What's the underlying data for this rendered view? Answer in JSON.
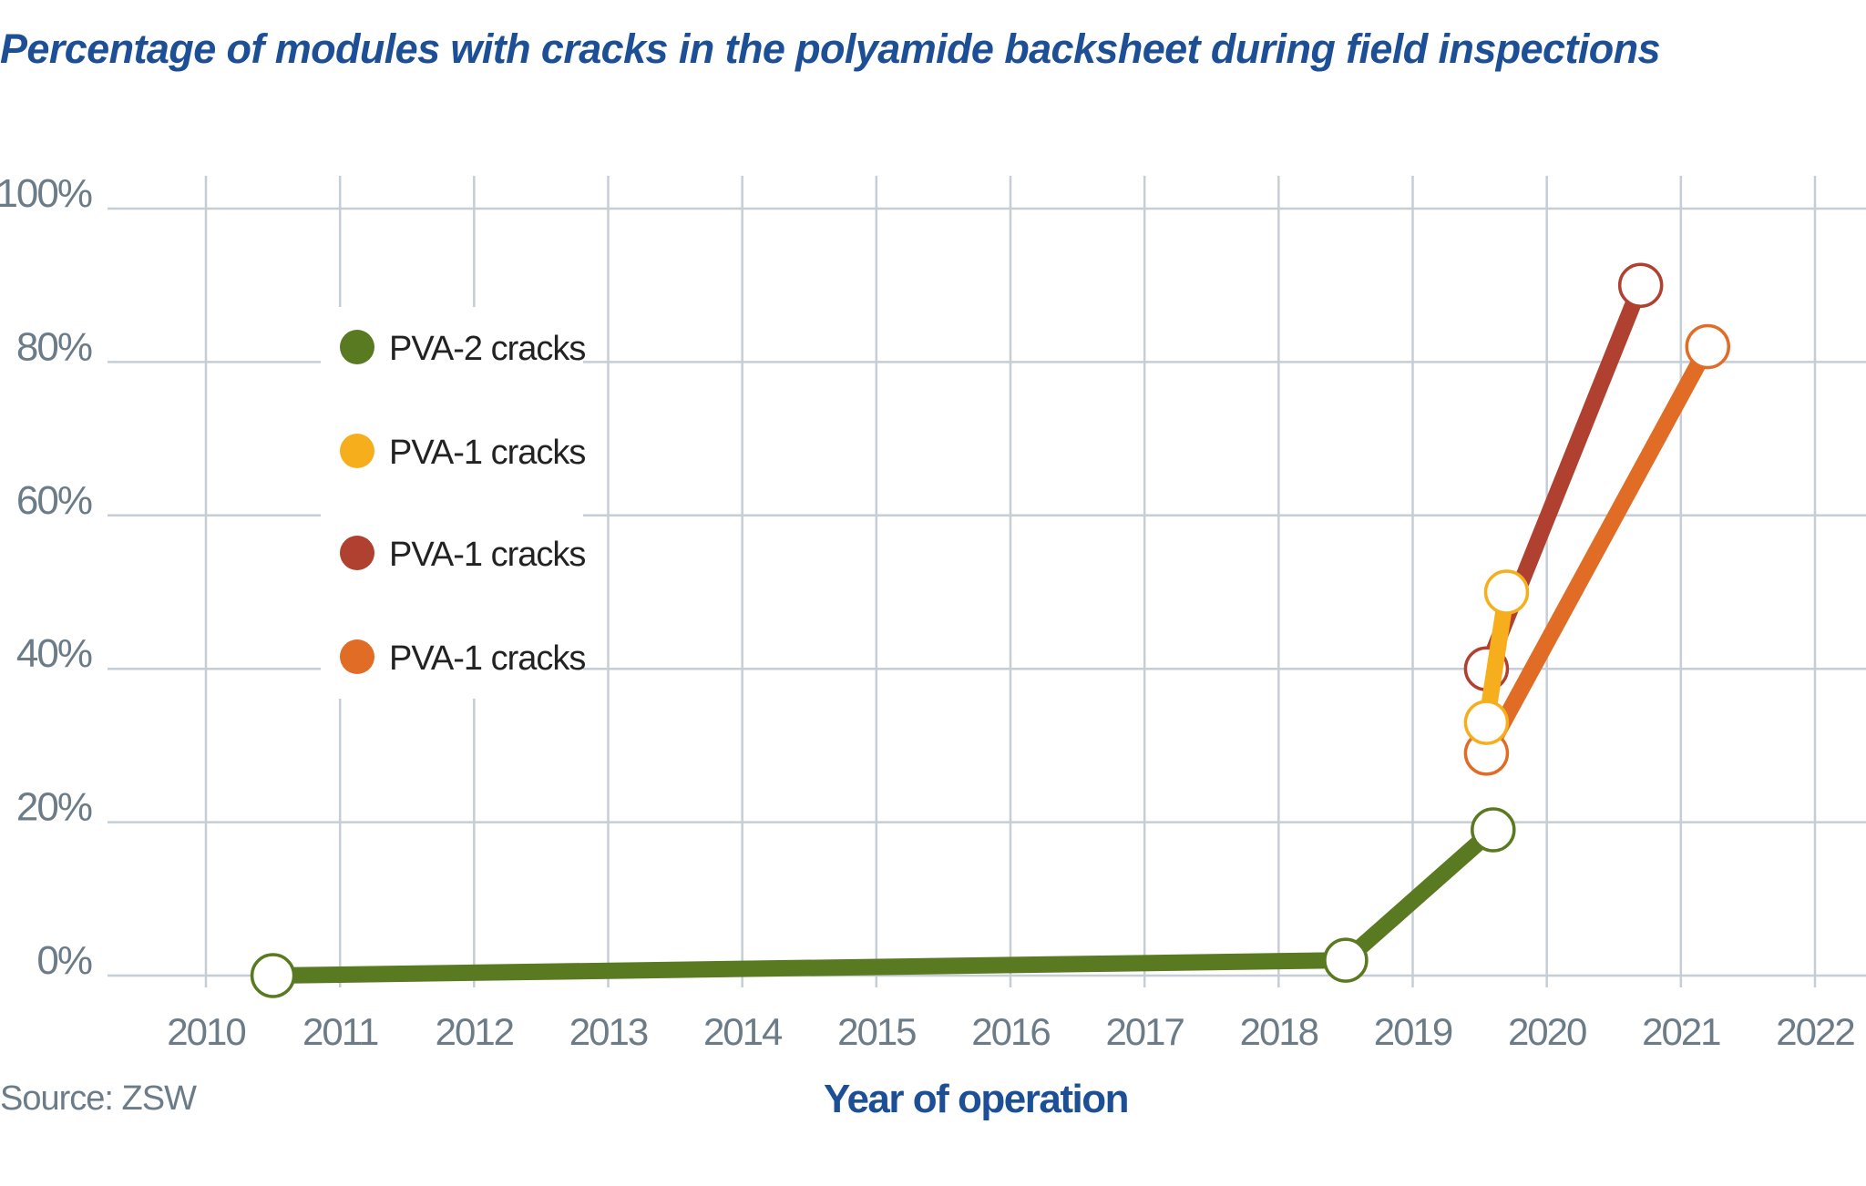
{
  "chart_data": {
    "type": "line",
    "title": "Percentage of modules with cracks in the polyamide backsheet during field inspections",
    "xlabel": "Year of operation",
    "ylabel": "",
    "source": "Source: ZSW",
    "xlim": [
      2010,
      2022
    ],
    "ylim": [
      0,
      100
    ],
    "x_ticks": [
      "2010",
      "2011",
      "2012",
      "2013",
      "2014",
      "2015",
      "2016",
      "2017",
      "2018",
      "2019",
      "2020",
      "2021",
      "2022"
    ],
    "y_ticks": [
      "0%",
      "20%",
      "40%",
      "60%",
      "80%",
      "100%"
    ],
    "grid": true,
    "legend_position": "top-left",
    "series": [
      {
        "name": "PVA-2 cracks",
        "color": "#5a7a22",
        "points": [
          [
            2010.5,
            0
          ],
          [
            2018.5,
            2
          ],
          [
            2019.6,
            19
          ]
        ]
      },
      {
        "name": "PVA-1 cracks",
        "color": "#f7ae1d",
        "points": [
          [
            2019.55,
            33
          ],
          [
            2019.7,
            50
          ]
        ]
      },
      {
        "name": "PVA-1 cracks",
        "color": "#b04030",
        "points": [
          [
            2019.55,
            40
          ],
          [
            2020.7,
            90
          ]
        ]
      },
      {
        "name": "PVA-1 cracks",
        "color": "#e06c25",
        "points": [
          [
            2019.55,
            29
          ],
          [
            2021.2,
            82
          ]
        ]
      }
    ]
  }
}
